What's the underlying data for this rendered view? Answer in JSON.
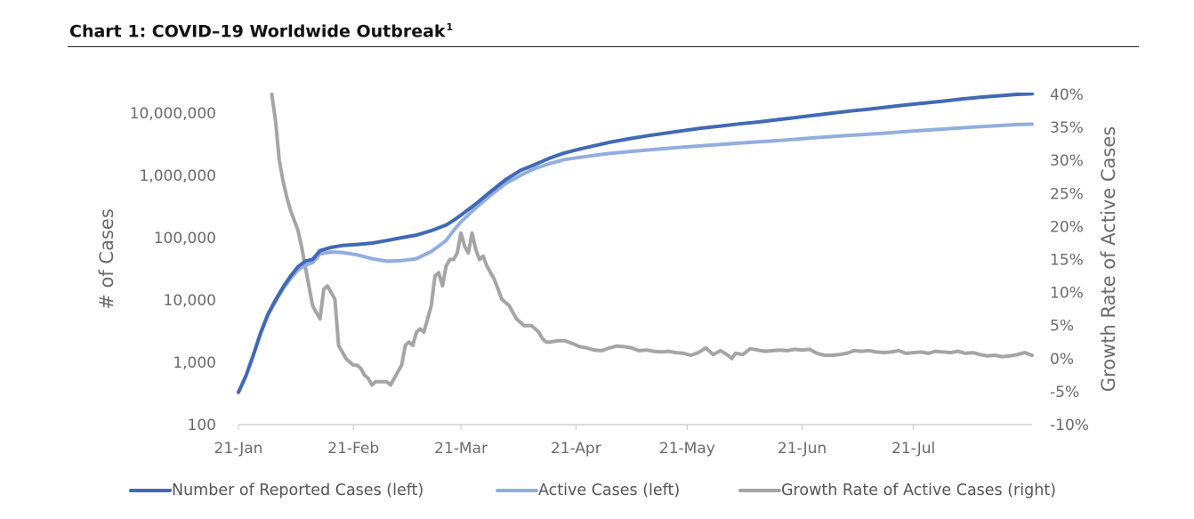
{
  "title": "Chart 1: COVID–19 Worldwide Outbreak",
  "title_footnote": "1",
  "chart_data": {
    "type": "line",
    "y_scale_left": "log",
    "ylabel": "# of Cases",
    "ylabel_right": "Growth Rate of Active Cases",
    "xlabel": "",
    "x_range": [
      0,
      214
    ],
    "ylim": [
      100,
      20000000
    ],
    "ylim_right": [
      -10,
      40
    ],
    "x_ticks": [
      {
        "label": "21-Jan",
        "day": 0
      },
      {
        "label": "21-Feb",
        "day": 31
      },
      {
        "label": "21-Mar",
        "day": 60
      },
      {
        "label": "21-Apr",
        "day": 91
      },
      {
        "label": "21-May",
        "day": 121
      },
      {
        "label": "21-Jun",
        "day": 152
      },
      {
        "label": "21-Jul",
        "day": 182
      }
    ],
    "y_ticks_left": [
      {
        "label": "100",
        "value": 100
      },
      {
        "label": "1,000",
        "value": 1000
      },
      {
        "label": "10,000",
        "value": 10000
      },
      {
        "label": "100,000",
        "value": 100000
      },
      {
        "label": "1,000,000",
        "value": 1000000
      },
      {
        "label": "10,000,000",
        "value": 10000000
      }
    ],
    "y_ticks_right": [
      {
        "label": "-10%",
        "value": -10
      },
      {
        "label": "-5%",
        "value": -5
      },
      {
        "label": "0%",
        "value": 0
      },
      {
        "label": "5%",
        "value": 5
      },
      {
        "label": "10%",
        "value": 10
      },
      {
        "label": "15%",
        "value": 15
      },
      {
        "label": "20%",
        "value": 20
      },
      {
        "label": "25%",
        "value": 25
      },
      {
        "label": "30%",
        "value": 30
      },
      {
        "label": "35%",
        "value": 35
      },
      {
        "label": "40%",
        "value": 40
      }
    ],
    "series": [
      {
        "name": "Number of Reported Cases (left)",
        "axis": "left",
        "color": "#4169b5",
        "points": [
          [
            0,
            330
          ],
          [
            2,
            600
          ],
          [
            4,
            1300
          ],
          [
            6,
            3000
          ],
          [
            8,
            6000
          ],
          [
            10,
            10000
          ],
          [
            12,
            16000
          ],
          [
            14,
            24000
          ],
          [
            16,
            34000
          ],
          [
            18,
            42000
          ],
          [
            20,
            45000
          ],
          [
            22,
            62000
          ],
          [
            25,
            70000
          ],
          [
            28,
            75000
          ],
          [
            32,
            78000
          ],
          [
            36,
            82000
          ],
          [
            40,
            90000
          ],
          [
            44,
            100000
          ],
          [
            48,
            110000
          ],
          [
            52,
            130000
          ],
          [
            56,
            160000
          ],
          [
            58,
            190000
          ],
          [
            60,
            230000
          ],
          [
            64,
            350000
          ],
          [
            68,
            550000
          ],
          [
            72,
            850000
          ],
          [
            76,
            1200000
          ],
          [
            80,
            1500000
          ],
          [
            84,
            1900000
          ],
          [
            88,
            2300000
          ],
          [
            92,
            2650000
          ],
          [
            96,
            3000000
          ],
          [
            100,
            3400000
          ],
          [
            105,
            3850000
          ],
          [
            110,
            4300000
          ],
          [
            115,
            4750000
          ],
          [
            120,
            5250000
          ],
          [
            125,
            5750000
          ],
          [
            130,
            6200000
          ],
          [
            135,
            6700000
          ],
          [
            140,
            7200000
          ],
          [
            145,
            7800000
          ],
          [
            150,
            8450000
          ],
          [
            155,
            9200000
          ],
          [
            160,
            10000000
          ],
          [
            165,
            10800000
          ],
          [
            170,
            11600000
          ],
          [
            175,
            12500000
          ],
          [
            180,
            13500000
          ],
          [
            185,
            14500000
          ],
          [
            190,
            15600000
          ],
          [
            195,
            16800000
          ],
          [
            200,
            18000000
          ],
          [
            205,
            19000000
          ],
          [
            210,
            20000000
          ],
          [
            214,
            20400000
          ]
        ]
      },
      {
        "name": "Active Cases (left)",
        "axis": "left",
        "color": "#92aede",
        "points": [
          [
            0,
            330
          ],
          [
            2,
            600
          ],
          [
            4,
            1300
          ],
          [
            6,
            2900
          ],
          [
            8,
            5800
          ],
          [
            10,
            9500
          ],
          [
            12,
            15000
          ],
          [
            14,
            22000
          ],
          [
            16,
            30000
          ],
          [
            18,
            36000
          ],
          [
            20,
            40000
          ],
          [
            22,
            55000
          ],
          [
            25,
            59000
          ],
          [
            28,
            58000
          ],
          [
            32,
            53000
          ],
          [
            36,
            46000
          ],
          [
            40,
            42000
          ],
          [
            44,
            43000
          ],
          [
            48,
            46000
          ],
          [
            52,
            60000
          ],
          [
            56,
            90000
          ],
          [
            58,
            130000
          ],
          [
            60,
            180000
          ],
          [
            64,
            300000
          ],
          [
            68,
            480000
          ],
          [
            72,
            740000
          ],
          [
            76,
            1000000
          ],
          [
            80,
            1300000
          ],
          [
            84,
            1550000
          ],
          [
            88,
            1800000
          ],
          [
            92,
            1950000
          ],
          [
            96,
            2100000
          ],
          [
            100,
            2250000
          ],
          [
            105,
            2400000
          ],
          [
            110,
            2550000
          ],
          [
            115,
            2700000
          ],
          [
            120,
            2850000
          ],
          [
            125,
            3000000
          ],
          [
            130,
            3150000
          ],
          [
            135,
            3300000
          ],
          [
            140,
            3450000
          ],
          [
            145,
            3600000
          ],
          [
            150,
            3800000
          ],
          [
            155,
            4000000
          ],
          [
            160,
            4200000
          ],
          [
            165,
            4400000
          ],
          [
            170,
            4600000
          ],
          [
            175,
            4800000
          ],
          [
            180,
            5050000
          ],
          [
            185,
            5300000
          ],
          [
            190,
            5550000
          ],
          [
            195,
            5800000
          ],
          [
            200,
            6050000
          ],
          [
            205,
            6300000
          ],
          [
            210,
            6550000
          ],
          [
            214,
            6650000
          ]
        ]
      },
      {
        "name": "Growth Rate of Active Cases (right)",
        "axis": "right",
        "color": "#a5a5a5",
        "points": [
          [
            9,
            40
          ],
          [
            10,
            36
          ],
          [
            11,
            30
          ],
          [
            12,
            27
          ],
          [
            13,
            24.5
          ],
          [
            14,
            22.5
          ],
          [
            15,
            21
          ],
          [
            16,
            19.5
          ],
          [
            17,
            17
          ],
          [
            18,
            14
          ],
          [
            19,
            11
          ],
          [
            20,
            8
          ],
          [
            21,
            7
          ],
          [
            22,
            6
          ],
          [
            23,
            10.5
          ],
          [
            24,
            11
          ],
          [
            25,
            10
          ],
          [
            26,
            9
          ],
          [
            27,
            2
          ],
          [
            28,
            1
          ],
          [
            29,
            0
          ],
          [
            30,
            -0.5
          ],
          [
            31,
            -1
          ],
          [
            32,
            -1
          ],
          [
            33,
            -1.5
          ],
          [
            34,
            -2.5
          ],
          [
            35,
            -3
          ],
          [
            36,
            -4
          ],
          [
            37,
            -3.5
          ],
          [
            38,
            -3.5
          ],
          [
            39,
            -3.5
          ],
          [
            40,
            -3.5
          ],
          [
            41,
            -4
          ],
          [
            42,
            -3
          ],
          [
            43,
            -2
          ],
          [
            44,
            -1
          ],
          [
            45,
            2
          ],
          [
            46,
            2.5
          ],
          [
            47,
            2
          ],
          [
            48,
            4
          ],
          [
            49,
            4.5
          ],
          [
            50,
            4
          ],
          [
            51,
            6
          ],
          [
            52,
            8
          ],
          [
            53,
            12.5
          ],
          [
            54,
            13
          ],
          [
            55,
            11
          ],
          [
            56,
            14
          ],
          [
            57,
            15
          ],
          [
            58,
            15
          ],
          [
            59,
            16
          ],
          [
            60,
            19
          ],
          [
            61,
            17
          ],
          [
            62,
            16
          ],
          [
            63,
            19
          ],
          [
            64,
            16.5
          ],
          [
            65,
            15
          ],
          [
            66,
            15.5
          ],
          [
            67,
            14
          ],
          [
            68,
            13
          ],
          [
            69,
            12
          ],
          [
            70,
            10.5
          ],
          [
            71,
            9
          ],
          [
            72,
            8.5
          ],
          [
            73,
            8
          ],
          [
            74,
            7
          ],
          [
            75,
            6
          ],
          [
            76,
            5.5
          ],
          [
            77,
            5
          ],
          [
            78,
            5
          ],
          [
            79,
            5
          ],
          [
            80,
            4.5
          ],
          [
            81,
            4
          ],
          [
            82,
            3
          ],
          [
            83,
            2.5
          ],
          [
            84,
            2.5
          ],
          [
            86,
            2.7
          ],
          [
            88,
            2.7
          ],
          [
            90,
            2.3
          ],
          [
            92,
            1.8
          ],
          [
            94,
            1.6
          ],
          [
            96,
            1.3
          ],
          [
            98,
            1.2
          ],
          [
            100,
            1.6
          ],
          [
            102,
            1.9
          ],
          [
            104,
            1.8
          ],
          [
            106,
            1.6
          ],
          [
            108,
            1.2
          ],
          [
            110,
            1.3
          ],
          [
            112,
            1.1
          ],
          [
            114,
            1.0
          ],
          [
            116,
            1.1
          ],
          [
            118,
            0.9
          ],
          [
            120,
            0.8
          ],
          [
            122,
            0.5
          ],
          [
            124,
            0.9
          ],
          [
            126,
            1.6
          ],
          [
            128,
            0.6
          ],
          [
            130,
            1.2
          ],
          [
            132,
            0.5
          ],
          [
            133,
            0.0
          ],
          [
            134,
            0.8
          ],
          [
            136,
            0.6
          ],
          [
            138,
            1.5
          ],
          [
            140,
            1.3
          ],
          [
            142,
            1.1
          ],
          [
            144,
            1.2
          ],
          [
            146,
            1.3
          ],
          [
            148,
            1.2
          ],
          [
            150,
            1.4
          ],
          [
            152,
            1.3
          ],
          [
            154,
            1.4
          ],
          [
            156,
            0.8
          ],
          [
            158,
            0.5
          ],
          [
            160,
            0.5
          ],
          [
            162,
            0.6
          ],
          [
            164,
            0.8
          ],
          [
            166,
            1.2
          ],
          [
            168,
            1.1
          ],
          [
            170,
            1.2
          ],
          [
            172,
            1.0
          ],
          [
            174,
            0.9
          ],
          [
            176,
            1.0
          ],
          [
            178,
            1.2
          ],
          [
            180,
            0.8
          ],
          [
            182,
            0.9
          ],
          [
            184,
            1.0
          ],
          [
            186,
            0.8
          ],
          [
            188,
            1.1
          ],
          [
            190,
            1.0
          ],
          [
            192,
            0.9
          ],
          [
            194,
            1.1
          ],
          [
            196,
            0.8
          ],
          [
            198,
            0.9
          ],
          [
            200,
            0.6
          ],
          [
            202,
            0.4
          ],
          [
            204,
            0.5
          ],
          [
            206,
            0.3
          ],
          [
            208,
            0.4
          ],
          [
            210,
            0.6
          ],
          [
            212,
            0.9
          ],
          [
            214,
            0.5
          ]
        ]
      }
    ],
    "legend": "bottom"
  }
}
